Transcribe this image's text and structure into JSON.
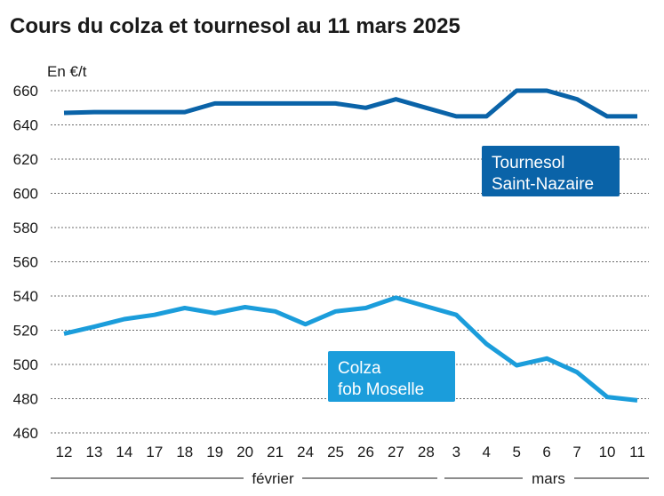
{
  "chart_data": {
    "type": "line",
    "title": "Cours du colza et tournesol au 11 mars 2025",
    "ylabel": "En €/t",
    "xlabel": "",
    "ylim": [
      460,
      660
    ],
    "yticks": [
      460,
      480,
      500,
      520,
      540,
      560,
      580,
      600,
      620,
      640,
      660
    ],
    "grid": true,
    "categories": [
      "12",
      "13",
      "14",
      "17",
      "18",
      "19",
      "20",
      "21",
      "24",
      "25",
      "26",
      "27",
      "28",
      "3",
      "4",
      "5",
      "6",
      "7",
      "10",
      "11"
    ],
    "month_groups": [
      {
        "label": "février",
        "from": 0,
        "to": 12
      },
      {
        "label": "mars",
        "from": 13,
        "to": 19
      }
    ],
    "series": [
      {
        "name": "Tournesol Saint-Nazaire",
        "label_lines": [
          "Tournesol",
          "Saint-Nazaire"
        ],
        "color": "#0a63a8",
        "values": [
          647,
          647.5,
          647.5,
          647.5,
          647.5,
          652.5,
          652.5,
          652.5,
          652.5,
          652.5,
          650,
          655,
          650,
          645,
          645,
          660,
          660,
          655,
          645,
          645
        ]
      },
      {
        "name": "Colza fob Moselle",
        "label_lines": [
          "Colza",
          "fob Moselle"
        ],
        "color": "#1b9ddb",
        "values": [
          518,
          522,
          526.5,
          529,
          533,
          530,
          533.5,
          531,
          523.5,
          531,
          533,
          539,
          534,
          529,
          512,
          499.5,
          503.5,
          495.5,
          481,
          479
        ]
      }
    ]
  }
}
